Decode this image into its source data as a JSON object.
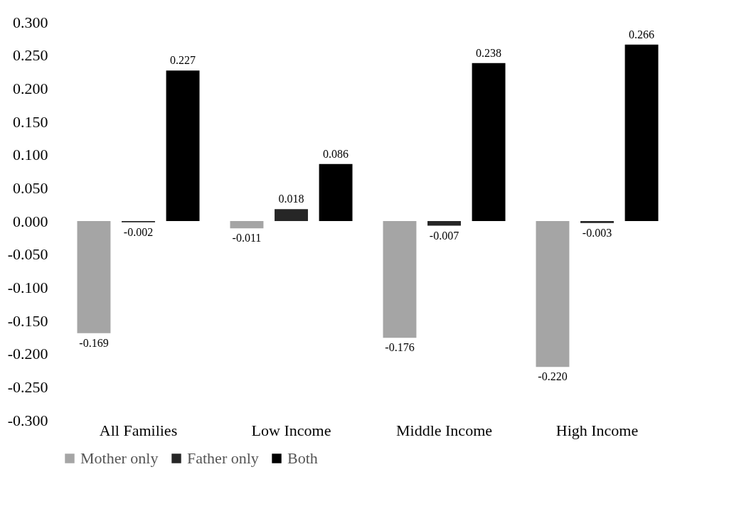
{
  "chart_data": {
    "type": "bar",
    "categories": [
      "All Families",
      "Low Income",
      "Middle Income",
      "High Income"
    ],
    "series": [
      {
        "name": "Mother only",
        "color": "#a5a5a5",
        "values": [
          -0.169,
          -0.011,
          -0.176,
          -0.22
        ],
        "value_labels": [
          "-0.169",
          "-0.011",
          "-0.176",
          "-0.220"
        ]
      },
      {
        "name": "Father only",
        "color": "#262626",
        "values": [
          -0.002,
          0.018,
          -0.007,
          -0.003
        ],
        "value_labels": [
          "-0.002",
          "0.018",
          "-0.007",
          "-0.003"
        ]
      },
      {
        "name": "Both",
        "color": "#000000",
        "values": [
          0.227,
          0.086,
          0.238,
          0.266
        ],
        "value_labels": [
          "0.227",
          "0.086",
          "0.238",
          "0.266"
        ]
      }
    ],
    "ylim": [
      -0.3,
      0.3
    ],
    "yticks": [
      {
        "value": -0.3,
        "label": "-0.300"
      },
      {
        "value": -0.25,
        "label": "-0.250"
      },
      {
        "value": -0.2,
        "label": "-0.200"
      },
      {
        "value": -0.15,
        "label": "-0.150"
      },
      {
        "value": -0.1,
        "label": "-0.100"
      },
      {
        "value": -0.05,
        "label": "-0.050"
      },
      {
        "value": 0,
        "label": "0.000"
      },
      {
        "value": 0.05,
        "label": "0.050"
      },
      {
        "value": 0.1,
        "label": "0.100"
      },
      {
        "value": 0.15,
        "label": "0.150"
      },
      {
        "value": 0.2,
        "label": "0.200"
      },
      {
        "value": 0.25,
        "label": "0.250"
      },
      {
        "value": 0.3,
        "label": "0.300"
      }
    ],
    "legend": "bottom",
    "grid": false
  }
}
